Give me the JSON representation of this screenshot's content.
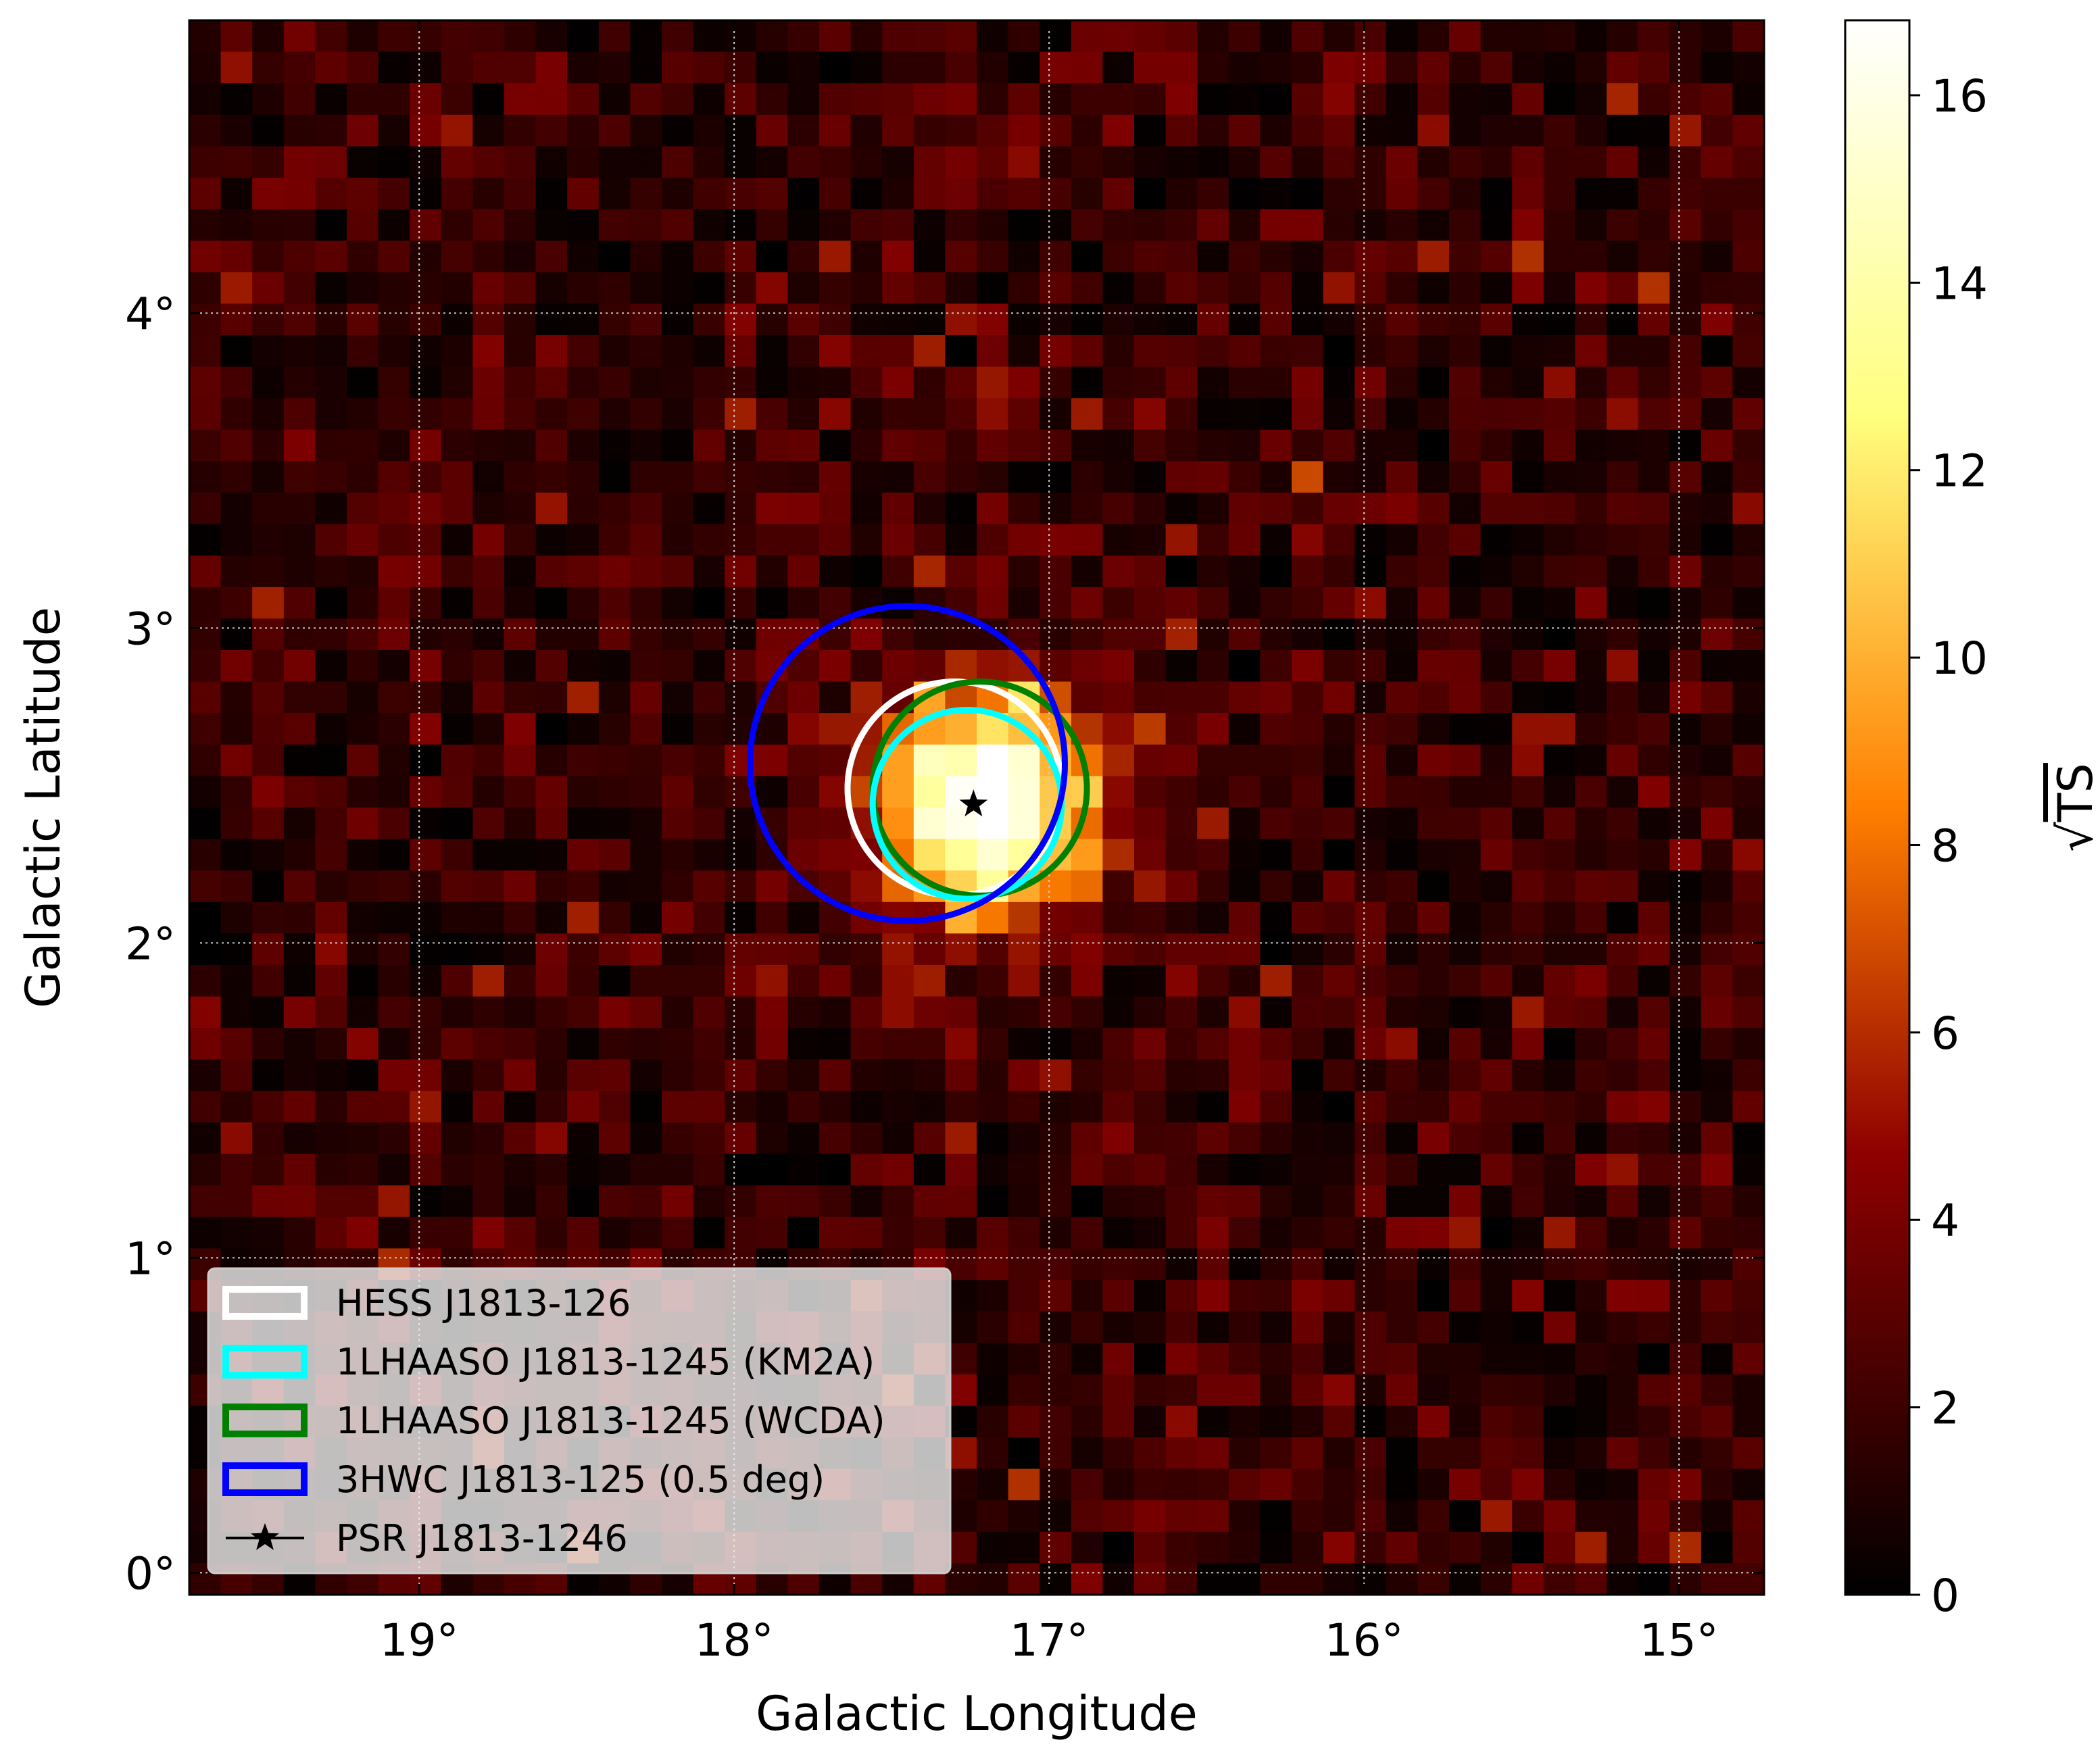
{
  "chart_data": {
    "type": "heatmap",
    "title": "",
    "xlabel": "Galactic Longitude",
    "ylabel": "Galactic Latitude",
    "colorbar_label": "√TS",
    "colorbar_label_sqrt": "√",
    "colorbar_label_main": "TS",
    "xlim": [
      19.73,
      14.73
    ],
    "ylim": [
      -0.07,
      4.93
    ],
    "grid": true,
    "x_ticks": [
      {
        "value": 19,
        "label": "19°"
      },
      {
        "value": 18,
        "label": "18°"
      },
      {
        "value": 17,
        "label": "17°"
      },
      {
        "value": 16,
        "label": "16°"
      },
      {
        "value": 15,
        "label": "15°"
      }
    ],
    "y_ticks": [
      {
        "value": 0,
        "label": "0°"
      },
      {
        "value": 1,
        "label": "1°"
      },
      {
        "value": 2,
        "label": "2°"
      },
      {
        "value": 3,
        "label": "3°"
      },
      {
        "value": 4,
        "label": "4°"
      }
    ],
    "colorbar": {
      "min": 0,
      "max": 16.8,
      "colormap": "afmhot",
      "ticks": [
        {
          "value": 0,
          "label": "0"
        },
        {
          "value": 2,
          "label": "2"
        },
        {
          "value": 4,
          "label": "4"
        },
        {
          "value": 6,
          "label": "6"
        },
        {
          "value": 8,
          "label": "8"
        },
        {
          "value": 10,
          "label": "10"
        },
        {
          "value": 12,
          "label": "12"
        },
        {
          "value": 14,
          "label": "14"
        },
        {
          "value": 16,
          "label": "16"
        }
      ]
    },
    "grid_cells": {
      "nx": 50,
      "ny": 50,
      "l_min": 14.73,
      "l_max": 19.73,
      "b_min": -0.07,
      "b_max": 4.93,
      "background_mean": 1.6,
      "background_noise": 1.7,
      "peak_l": 17.2,
      "peak_b": 2.44,
      "peak_value": 16.5,
      "peak_sigma_deg": 0.24
    },
    "regions": [
      {
        "name": "HESS J1813-126",
        "l": 17.3,
        "b": 2.49,
        "r": 0.34,
        "color": "#ffffff"
      },
      {
        "name": "1LHAASO J1813-1245 (WCDA)",
        "l": 17.22,
        "b": 2.49,
        "r": 0.34,
        "color": "#008000"
      },
      {
        "name": "1LHAASO J1813-1245 (KM2A)",
        "l": 17.26,
        "b": 2.44,
        "r": 0.3,
        "color": "#00ffff"
      },
      {
        "name": "3HWC J1813-125 (0.5 deg)",
        "l": 17.45,
        "b": 2.57,
        "r": 0.5,
        "color": "#0000ff"
      }
    ],
    "pulsar": {
      "name": "PSR J1813-1246",
      "l": 17.24,
      "b": 2.44,
      "marker": "star",
      "color": "#000000"
    },
    "legend": {
      "position": "lower-left",
      "entries": [
        {
          "label": "HESS J1813-126",
          "color": "#ffffff",
          "kind": "box"
        },
        {
          "label": "1LHAASO J1813-1245 (KM2A)",
          "color": "#00ffff",
          "kind": "box"
        },
        {
          "label": "1LHAASO J1813-1245 (WCDA)",
          "color": "#008000",
          "kind": "box"
        },
        {
          "label": "3HWC J1813-125 (0.5 deg)",
          "color": "#0000ff",
          "kind": "box"
        },
        {
          "label": "PSR J1813-1246",
          "color": "#000000",
          "kind": "star"
        }
      ]
    }
  }
}
